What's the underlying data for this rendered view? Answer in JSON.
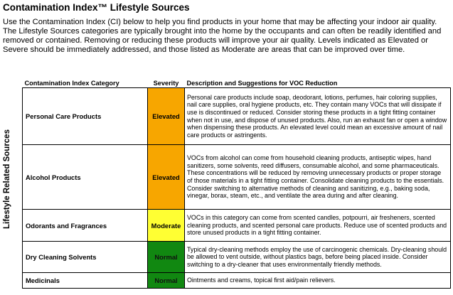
{
  "title": "Contamination Index™ Lifestyle Sources",
  "intro": "Use the Contamination Index (CI) below to help you find products in your home that may be affecting your indoor air quality.  The Lifestyle Sources categories are typically brought into the home by the occupants and can often be readily identified and removed or contained. Removing or reducing these products will improve your air quality. Levels indicated as Elevated or Severe should be immediately addressed, and those listed as Moderate are areas that can be improved over time.",
  "side_label": "Lifestyle Related Sources",
  "table": {
    "headers": {
      "category": "Contamination Index Category",
      "severity": "Severity",
      "description": "Description and Suggestions for VOC Reduction"
    },
    "rows": [
      {
        "category": "Personal Care Products",
        "severity": "Elevated",
        "severity_color": "#f7a600",
        "description": "Personal care products include soap, deodorant, lotions, perfumes, hair coloring supplies, nail care supplies, oral hygiene products, etc. They contain many VOCs that will dissipate if use is discontinued or reduced. Consider storing these products in a tight fitting container when not in use, and dispose of unused products. Also, run an exhaust fan or open a window when dispensing these products. An elevated level could mean an excessive amount of nail care products or astringents."
      },
      {
        "category": "Alcohol Products",
        "severity": "Elevated",
        "severity_color": "#f7a600",
        "description": "VOCs from alcohol can come from household cleaning products, antiseptic wipes, hand sanitizers, some solvents, reed diffusers, consumable alcohol, and some pharmaceuticals. These concentrations will be reduced by removing unnecessary products or proper storage of those materials in a tight fitting container. Consolidate cleaning products to the essentials. Consider switching to alternative methods of cleaning and sanitizing, e.g., baking soda, vinegar, borax, steam, etc., and ventilate the area during and after cleaning."
      },
      {
        "category": "Odorants and Fragrances",
        "severity": "Moderate",
        "severity_color": "#ffff33",
        "description": "VOCs in this category can come from scented candles, potpourri, air fresheners, scented cleaning products, and scented personal care products. Reduce use of scented products and store unused products in a tight fitting container."
      },
      {
        "category": "Dry Cleaning Solvents",
        "severity": "Normal",
        "severity_color": "#118811",
        "description": "Typical dry-cleaning methods employ the use of carcinogenic chemicals. Dry-cleaning should be allowed to vent outside, without plastics bags, before being placed inside. Consider switching to a dry-cleaner that uses environmentally friendly methods."
      },
      {
        "category": "Medicinals",
        "severity": "Normal",
        "severity_color": "#118811",
        "description": "Ointments and creams, topical first aid/pain relievers."
      }
    ]
  }
}
